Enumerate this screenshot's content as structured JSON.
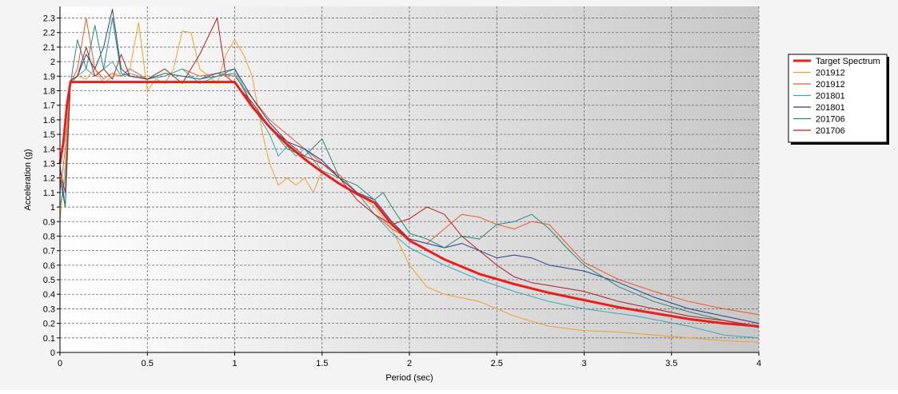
{
  "chart_data": {
    "type": "line",
    "title": "",
    "xlabel": "Period (sec)",
    "ylabel": "Acceleration (g)",
    "xlim": [
      0,
      4
    ],
    "ylim": [
      0,
      2.38
    ],
    "x_ticks": [
      "0",
      "0.5",
      "1",
      "1.5",
      "2",
      "2.5",
      "3",
      "3.5",
      "4"
    ],
    "x_tick_values": [
      0,
      0.5,
      1,
      1.5,
      2,
      2.5,
      3,
      3.5,
      4
    ],
    "y_ticks": [
      "0",
      "0.1",
      "0.2",
      "0.3",
      "0.4",
      "0.5",
      "0.6",
      "0.7",
      "0.8",
      "0.9",
      "1",
      "1.1",
      "1.2",
      "1.3",
      "1.4",
      "1.5",
      "1.6",
      "1.7",
      "1.8",
      "1.9",
      "2",
      "2.1",
      "2.2",
      "2.3"
    ],
    "y_tick_values": [
      0,
      0.1,
      0.2,
      0.3,
      0.4,
      0.5,
      0.6,
      0.7,
      0.8,
      0.9,
      1,
      1.1,
      1.2,
      1.3,
      1.4,
      1.5,
      1.6,
      1.7,
      1.8,
      1.9,
      2,
      2.1,
      2.2,
      2.3
    ],
    "grid": true,
    "legend_position": "top-right",
    "series": [
      {
        "name": "Target Spectrum",
        "color": "#e8201c",
        "width": 3,
        "points": [
          [
            0,
            1.3
          ],
          [
            0.02,
            1.45
          ],
          [
            0.04,
            1.7
          ],
          [
            0.06,
            1.86
          ],
          [
            1.0,
            1.86
          ],
          [
            1.1,
            1.69
          ],
          [
            1.2,
            1.55
          ],
          [
            1.3,
            1.43
          ],
          [
            1.4,
            1.33
          ],
          [
            1.5,
            1.24
          ],
          [
            1.6,
            1.16
          ],
          [
            1.7,
            1.09
          ],
          [
            1.8,
            1.03
          ],
          [
            1.9,
            0.88
          ],
          [
            2.0,
            0.77
          ],
          [
            2.2,
            0.64
          ],
          [
            2.4,
            0.54
          ],
          [
            2.6,
            0.47
          ],
          [
            2.8,
            0.41
          ],
          [
            3.0,
            0.36
          ],
          [
            3.2,
            0.31
          ],
          [
            3.4,
            0.27
          ],
          [
            3.6,
            0.23
          ],
          [
            3.8,
            0.2
          ],
          [
            4.0,
            0.18
          ]
        ]
      },
      {
        "name": "201912",
        "color": "#f0a030",
        "width": 1,
        "points": [
          [
            0,
            0.9
          ],
          [
            0.03,
            1.3
          ],
          [
            0.06,
            1.85
          ],
          [
            0.1,
            1.9
          ],
          [
            0.15,
            1.88
          ],
          [
            0.2,
            1.95
          ],
          [
            0.25,
            1.85
          ],
          [
            0.3,
            1.9
          ],
          [
            0.35,
            1.9
          ],
          [
            0.4,
            1.95
          ],
          [
            0.45,
            2.27
          ],
          [
            0.5,
            1.8
          ],
          [
            0.55,
            1.88
          ],
          [
            0.6,
            1.85
          ],
          [
            0.65,
            1.95
          ],
          [
            0.7,
            2.21
          ],
          [
            0.75,
            2.2
          ],
          [
            0.8,
            1.95
          ],
          [
            0.85,
            1.9
          ],
          [
            0.9,
            1.85
          ],
          [
            0.95,
            2.05
          ],
          [
            1.0,
            2.15
          ],
          [
            1.05,
            2.05
          ],
          [
            1.1,
            1.9
          ],
          [
            1.13,
            1.7
          ],
          [
            1.16,
            1.5
          ],
          [
            1.2,
            1.3
          ],
          [
            1.25,
            1.15
          ],
          [
            1.3,
            1.2
          ],
          [
            1.35,
            1.15
          ],
          [
            1.4,
            1.2
          ],
          [
            1.45,
            1.1
          ],
          [
            1.5,
            1.25
          ],
          [
            1.6,
            1.2
          ],
          [
            1.7,
            1.1
          ],
          [
            1.8,
            1.0
          ],
          [
            1.9,
            0.85
          ],
          [
            2.0,
            0.6
          ],
          [
            2.1,
            0.45
          ],
          [
            2.2,
            0.4
          ],
          [
            2.4,
            0.35
          ],
          [
            2.5,
            0.3
          ],
          [
            2.6,
            0.25
          ],
          [
            2.8,
            0.18
          ],
          [
            3.0,
            0.15
          ],
          [
            3.2,
            0.14
          ],
          [
            3.5,
            0.11
          ],
          [
            3.8,
            0.08
          ],
          [
            4.0,
            0.07
          ]
        ]
      },
      {
        "name": "201912",
        "color": "#ee5a28",
        "width": 1,
        "points": [
          [
            0,
            1.1
          ],
          [
            0.03,
            1.4
          ],
          [
            0.06,
            1.85
          ],
          [
            0.1,
            1.95
          ],
          [
            0.15,
            2.3
          ],
          [
            0.2,
            1.95
          ],
          [
            0.25,
            1.88
          ],
          [
            0.3,
            1.92
          ],
          [
            0.35,
            1.9
          ],
          [
            0.4,
            1.95
          ],
          [
            0.5,
            1.88
          ],
          [
            0.6,
            1.9
          ],
          [
            0.7,
            1.95
          ],
          [
            0.8,
            1.9
          ],
          [
            0.9,
            1.92
          ],
          [
            1.0,
            1.9
          ],
          [
            1.1,
            1.75
          ],
          [
            1.2,
            1.6
          ],
          [
            1.3,
            1.5
          ],
          [
            1.4,
            1.4
          ],
          [
            1.5,
            1.3
          ],
          [
            1.6,
            1.22
          ],
          [
            1.7,
            1.1
          ],
          [
            1.8,
            0.95
          ],
          [
            1.9,
            0.85
          ],
          [
            2.0,
            0.78
          ],
          [
            2.1,
            0.75
          ],
          [
            2.2,
            0.85
          ],
          [
            2.3,
            0.95
          ],
          [
            2.4,
            0.93
          ],
          [
            2.5,
            0.88
          ],
          [
            2.6,
            0.85
          ],
          [
            2.7,
            0.9
          ],
          [
            2.8,
            0.88
          ],
          [
            2.9,
            0.75
          ],
          [
            3.0,
            0.62
          ],
          [
            3.2,
            0.5
          ],
          [
            3.4,
            0.42
          ],
          [
            3.6,
            0.35
          ],
          [
            3.8,
            0.3
          ],
          [
            4.0,
            0.26
          ]
        ]
      },
      {
        "name": "201801",
        "color": "#3aa8b8",
        "width": 1,
        "points": [
          [
            0,
            1.0
          ],
          [
            0.03,
            1.2
          ],
          [
            0.06,
            1.85
          ],
          [
            0.1,
            1.9
          ],
          [
            0.15,
            1.95
          ],
          [
            0.2,
            1.9
          ],
          [
            0.25,
            1.95
          ],
          [
            0.3,
            2.0
          ],
          [
            0.35,
            1.9
          ],
          [
            0.4,
            1.92
          ],
          [
            0.5,
            1.88
          ],
          [
            0.6,
            1.9
          ],
          [
            0.7,
            1.95
          ],
          [
            0.8,
            1.85
          ],
          [
            0.9,
            1.9
          ],
          [
            1.0,
            1.95
          ],
          [
            1.1,
            1.7
          ],
          [
            1.2,
            1.5
          ],
          [
            1.25,
            1.35
          ],
          [
            1.3,
            1.42
          ],
          [
            1.35,
            1.35
          ],
          [
            1.4,
            1.4
          ],
          [
            1.5,
            1.25
          ],
          [
            1.6,
            1.2
          ],
          [
            1.7,
            1.1
          ],
          [
            1.8,
            0.95
          ],
          [
            1.9,
            0.82
          ],
          [
            2.0,
            0.72
          ],
          [
            2.2,
            0.6
          ],
          [
            2.4,
            0.5
          ],
          [
            2.6,
            0.42
          ],
          [
            2.8,
            0.35
          ],
          [
            3.0,
            0.3
          ],
          [
            3.3,
            0.25
          ],
          [
            3.6,
            0.18
          ],
          [
            3.8,
            0.12
          ],
          [
            4.0,
            0.1
          ]
        ]
      },
      {
        "name": "201801",
        "color": "#2a3f8a",
        "width": 1,
        "points": [
          [
            0,
            1.2
          ],
          [
            0.03,
            1.0
          ],
          [
            0.06,
            1.87
          ],
          [
            0.1,
            1.9
          ],
          [
            0.15,
            2.05
          ],
          [
            0.2,
            1.95
          ],
          [
            0.25,
            2.1
          ],
          [
            0.3,
            2.36
          ],
          [
            0.35,
            1.95
          ],
          [
            0.4,
            1.9
          ],
          [
            0.5,
            1.88
          ],
          [
            0.6,
            1.92
          ],
          [
            0.7,
            1.9
          ],
          [
            0.8,
            1.88
          ],
          [
            0.9,
            1.92
          ],
          [
            1.0,
            1.95
          ],
          [
            1.1,
            1.75
          ],
          [
            1.2,
            1.58
          ],
          [
            1.3,
            1.45
          ],
          [
            1.4,
            1.4
          ],
          [
            1.5,
            1.32
          ],
          [
            1.6,
            1.2
          ],
          [
            1.7,
            1.1
          ],
          [
            1.8,
            1.05
          ],
          [
            1.9,
            0.9
          ],
          [
            2.0,
            0.78
          ],
          [
            2.1,
            0.75
          ],
          [
            2.2,
            0.72
          ],
          [
            2.3,
            0.75
          ],
          [
            2.4,
            0.7
          ],
          [
            2.5,
            0.65
          ],
          [
            2.6,
            0.67
          ],
          [
            2.7,
            0.65
          ],
          [
            2.8,
            0.6
          ],
          [
            2.9,
            0.58
          ],
          [
            3.0,
            0.56
          ],
          [
            3.2,
            0.48
          ],
          [
            3.4,
            0.38
          ],
          [
            3.6,
            0.3
          ],
          [
            3.8,
            0.25
          ],
          [
            4.0,
            0.2
          ]
        ]
      },
      {
        "name": "201706",
        "color": "#2a8a78",
        "width": 1,
        "points": [
          [
            0,
            1.3
          ],
          [
            0.03,
            1.0
          ],
          [
            0.06,
            1.85
          ],
          [
            0.1,
            2.15
          ],
          [
            0.15,
            1.95
          ],
          [
            0.2,
            2.25
          ],
          [
            0.25,
            1.95
          ],
          [
            0.3,
            2.3
          ],
          [
            0.35,
            1.92
          ],
          [
            0.4,
            1.9
          ],
          [
            0.5,
            1.88
          ],
          [
            0.6,
            1.92
          ],
          [
            0.7,
            1.9
          ],
          [
            0.8,
            1.88
          ],
          [
            0.9,
            1.9
          ],
          [
            1.0,
            1.92
          ],
          [
            1.1,
            1.7
          ],
          [
            1.2,
            1.55
          ],
          [
            1.3,
            1.4
          ],
          [
            1.4,
            1.35
          ],
          [
            1.5,
            1.47
          ],
          [
            1.6,
            1.2
          ],
          [
            1.7,
            1.15
          ],
          [
            1.8,
            1.05
          ],
          [
            1.85,
            1.1
          ],
          [
            1.9,
            1.0
          ],
          [
            2.0,
            0.82
          ],
          [
            2.1,
            0.78
          ],
          [
            2.2,
            0.72
          ],
          [
            2.3,
            0.8
          ],
          [
            2.4,
            0.78
          ],
          [
            2.5,
            0.88
          ],
          [
            2.6,
            0.9
          ],
          [
            2.7,
            0.95
          ],
          [
            2.8,
            0.85
          ],
          [
            2.9,
            0.72
          ],
          [
            3.0,
            0.6
          ],
          [
            3.2,
            0.45
          ],
          [
            3.4,
            0.35
          ],
          [
            3.6,
            0.28
          ],
          [
            3.8,
            0.22
          ],
          [
            4.0,
            0.17
          ]
        ]
      },
      {
        "name": "201706",
        "color": "#b02020",
        "width": 1,
        "points": [
          [
            0,
            1.25
          ],
          [
            0.03,
            1.1
          ],
          [
            0.06,
            1.87
          ],
          [
            0.1,
            1.9
          ],
          [
            0.15,
            2.1
          ],
          [
            0.2,
            1.9
          ],
          [
            0.25,
            1.95
          ],
          [
            0.3,
            1.88
          ],
          [
            0.35,
            2.05
          ],
          [
            0.4,
            1.9
          ],
          [
            0.5,
            1.88
          ],
          [
            0.6,
            1.95
          ],
          [
            0.7,
            1.85
          ],
          [
            0.8,
            2.05
          ],
          [
            0.9,
            2.3
          ],
          [
            0.95,
            1.9
          ],
          [
            1.0,
            1.85
          ],
          [
            1.1,
            1.72
          ],
          [
            1.2,
            1.55
          ],
          [
            1.3,
            1.45
          ],
          [
            1.4,
            1.35
          ],
          [
            1.5,
            1.3
          ],
          [
            1.6,
            1.2
          ],
          [
            1.7,
            1.05
          ],
          [
            1.8,
            0.95
          ],
          [
            1.9,
            0.88
          ],
          [
            2.0,
            0.92
          ],
          [
            2.1,
            1.0
          ],
          [
            2.2,
            0.95
          ],
          [
            2.3,
            0.8
          ],
          [
            2.4,
            0.7
          ],
          [
            2.5,
            0.6
          ],
          [
            2.6,
            0.52
          ],
          [
            2.7,
            0.48
          ],
          [
            2.8,
            0.46
          ],
          [
            3.0,
            0.42
          ],
          [
            3.2,
            0.35
          ],
          [
            3.4,
            0.3
          ],
          [
            3.6,
            0.25
          ],
          [
            3.8,
            0.22
          ],
          [
            4.0,
            0.18
          ]
        ]
      }
    ]
  }
}
